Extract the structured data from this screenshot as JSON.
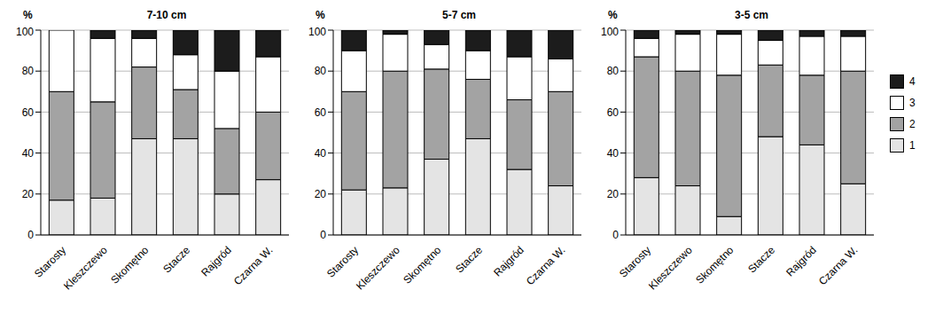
{
  "chart_data": [
    {
      "type": "bar",
      "title": "7-10 cm",
      "ylabel": "%",
      "stacked": true,
      "grid": true,
      "categories": [
        "Starosty",
        "Kleszczewo",
        "Skomętno",
        "Stacze",
        "Rajgród",
        "Czarna W."
      ],
      "ylim": [
        0,
        100
      ],
      "yticks": [
        0,
        20,
        40,
        60,
        80,
        100
      ],
      "series": [
        {
          "name": "1",
          "color": "#e4e4e4",
          "values": [
            17,
            18,
            47,
            47,
            20,
            27
          ]
        },
        {
          "name": "2",
          "color": "#a3a3a3",
          "values": [
            53,
            47,
            35,
            24,
            32,
            33
          ]
        },
        {
          "name": "3",
          "color": "#ffffff",
          "values": [
            30,
            31,
            14,
            17,
            28,
            27
          ]
        },
        {
          "name": "4",
          "color": "#1c1c1c",
          "values": [
            0,
            4,
            4,
            12,
            20,
            13
          ]
        }
      ]
    },
    {
      "type": "bar",
      "title": "5-7 cm",
      "ylabel": "%",
      "stacked": true,
      "grid": true,
      "categories": [
        "Starosty",
        "Kleszczewo",
        "Skomętno",
        "Stacze",
        "Rajgród",
        "Czarna W."
      ],
      "ylim": [
        0,
        100
      ],
      "yticks": [
        0,
        20,
        40,
        60,
        80,
        100
      ],
      "series": [
        {
          "name": "1",
          "color": "#e4e4e4",
          "values": [
            22,
            23,
            37,
            47,
            32,
            24
          ]
        },
        {
          "name": "2",
          "color": "#a3a3a3",
          "values": [
            48,
            57,
            44,
            29,
            34,
            46
          ]
        },
        {
          "name": "3",
          "color": "#ffffff",
          "values": [
            20,
            18,
            12,
            14,
            21,
            16
          ]
        },
        {
          "name": "4",
          "color": "#1c1c1c",
          "values": [
            10,
            2,
            7,
            10,
            13,
            14
          ]
        }
      ]
    },
    {
      "type": "bar",
      "title": "3-5 cm",
      "ylabel": "%",
      "stacked": true,
      "grid": true,
      "legend": "right",
      "categories": [
        "Starosty",
        "Kleszczewo",
        "Skomętno",
        "Stacze",
        "Rajgród",
        "Czarna W."
      ],
      "ylim": [
        0,
        100
      ],
      "yticks": [
        0,
        20,
        40,
        60,
        80,
        100
      ],
      "series": [
        {
          "name": "1",
          "color": "#e4e4e4",
          "values": [
            28,
            24,
            9,
            48,
            44,
            25
          ]
        },
        {
          "name": "2",
          "color": "#a3a3a3",
          "values": [
            59,
            56,
            69,
            35,
            34,
            55
          ]
        },
        {
          "name": "3",
          "color": "#ffffff",
          "values": [
            9,
            18,
            20,
            12,
            19,
            17
          ]
        },
        {
          "name": "4",
          "color": "#1c1c1c",
          "values": [
            4,
            2,
            2,
            5,
            3,
            3
          ]
        }
      ]
    }
  ]
}
